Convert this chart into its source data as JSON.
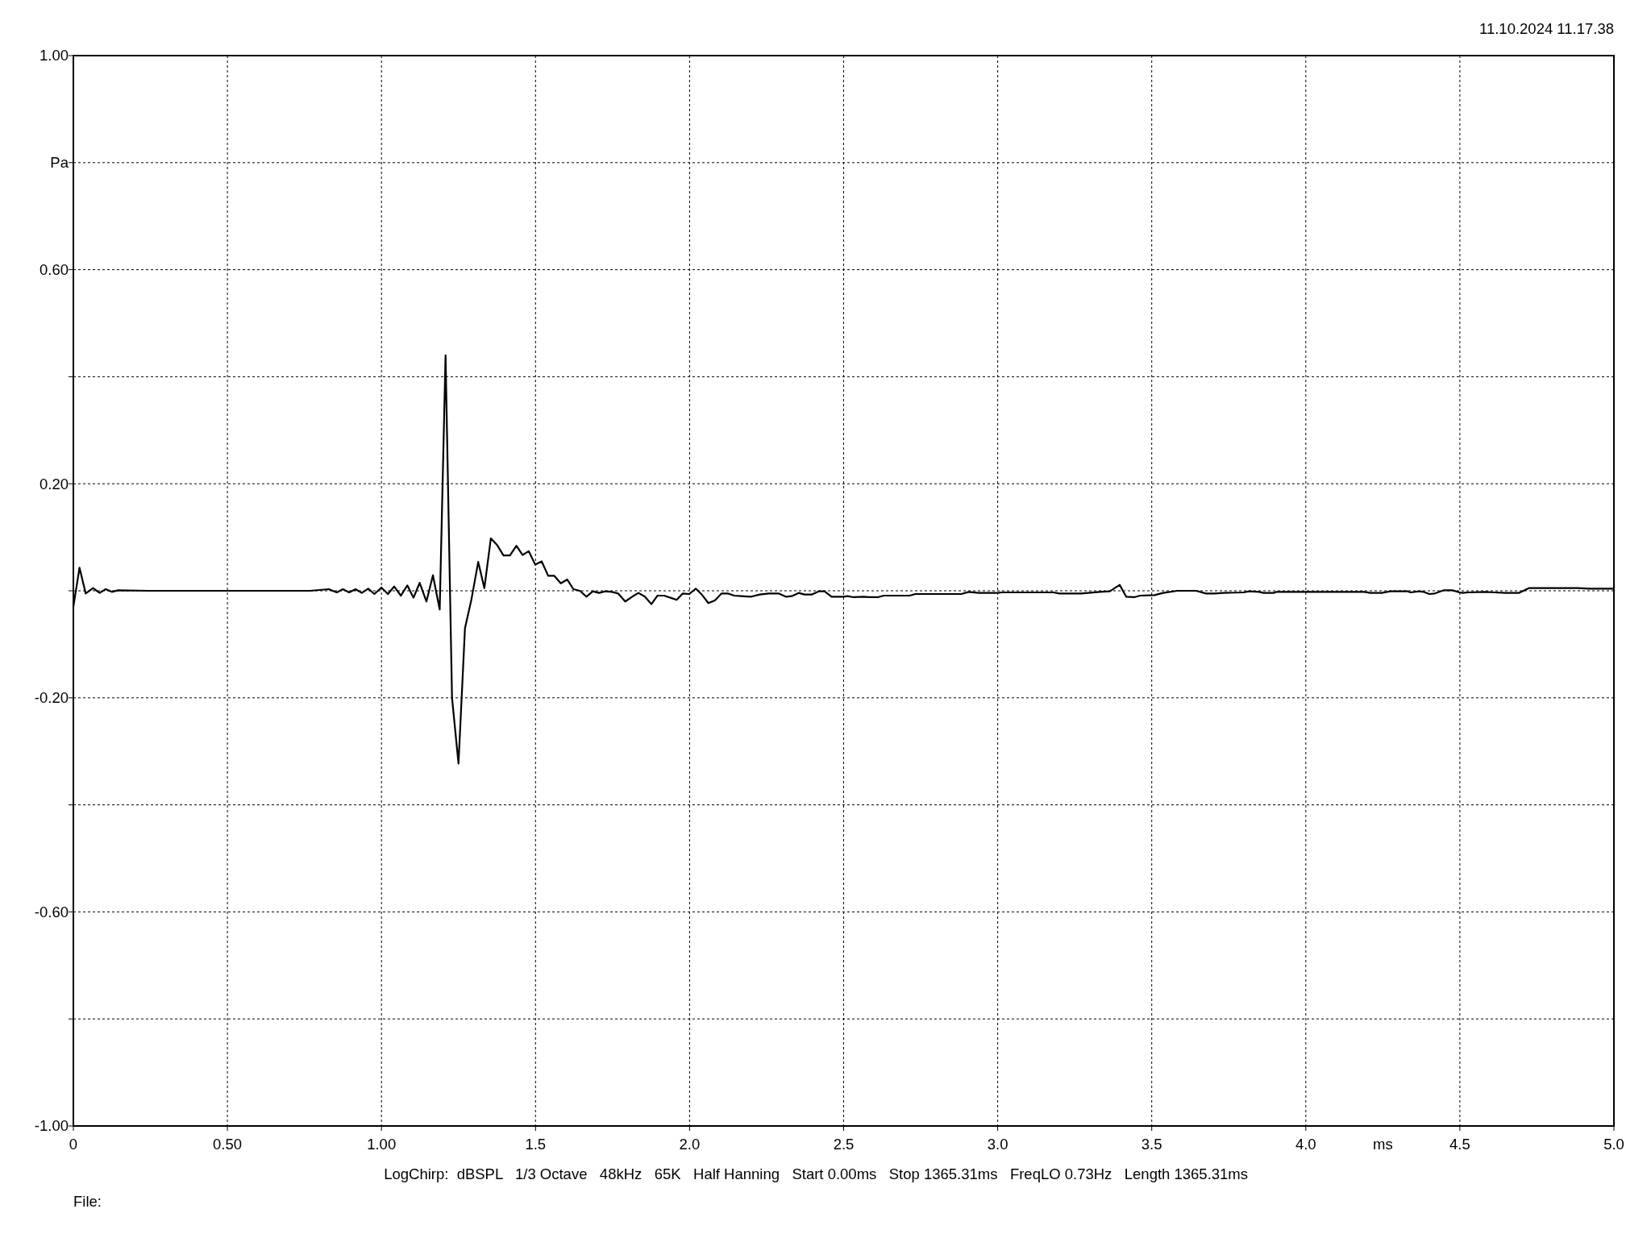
{
  "chart_data": {
    "type": "line",
    "ylabel": "Pa",
    "xlabel": "ms",
    "annotations": [
      "11.10.2024 11.17.38",
      "LogChirp:  dBSPL   1/3 Octave   48kHz   65K   Half Hanning   Start 0.00ms   Stop 1365.31ms   FreqLO 0.73Hz   Length 1365.31ms",
      "File:"
    ],
    "xlim": [
      0,
      5
    ],
    "xticks": [
      0,
      {
        "value": 0.5,
        "label": "0.50"
      },
      {
        "value": 1,
        "label": "1.00"
      },
      1.5,
      {
        "value": 2,
        "label": "2.0"
      },
      2.5,
      {
        "value": 3,
        "label": "3.0"
      },
      3.5,
      {
        "value": 4,
        "label": "4.0"
      },
      4.5,
      {
        "value": 5,
        "label": "5.0"
      }
    ],
    "ylim": [
      -1,
      1
    ],
    "yticks": [
      {
        "value": -1,
        "label": "-1.00"
      },
      {
        "value": -0.8,
        "label": null
      },
      {
        "value": -0.6,
        "label": "-0.60"
      },
      {
        "value": -0.4,
        "label": null
      },
      {
        "value": -0.2,
        "label": "-0.20"
      },
      {
        "value": 0,
        "label": null
      },
      {
        "value": 0.2,
        "label": "0.20"
      },
      {
        "value": 0.4,
        "label": null
      },
      {
        "value": 0.6,
        "label": "0.60"
      },
      {
        "value": 0.8,
        "label": null
      },
      {
        "value": 1,
        "label": "1.00"
      }
    ],
    "grid": true,
    "line_style": "solid",
    "series": [
      {
        "color": "#000000",
        "x": [
          0,
          0.02,
          0.04,
          0.064,
          0.085,
          0.105,
          0.125,
          0.145,
          0.245,
          0.506,
          0.768,
          0.829,
          0.855,
          0.875,
          0.895,
          0.916,
          0.936,
          0.957,
          0.977,
          1.0,
          1.021,
          1.041,
          1.063,
          1.084,
          1.104,
          1.124,
          1.146,
          1.167,
          1.189,
          1.208,
          1.229,
          1.25,
          1.271,
          1.292,
          1.314,
          1.334,
          1.355,
          1.376,
          1.396,
          1.417,
          1.438,
          1.458,
          1.478,
          1.499,
          1.52,
          1.541,
          1.561,
          1.582,
          1.603,
          1.623,
          1.644,
          1.665,
          1.686,
          1.706,
          1.727,
          1.748,
          1.768,
          1.791,
          1.814,
          1.834,
          1.855,
          1.876,
          1.896,
          1.917,
          1.938,
          1.958,
          1.978,
          1.999,
          2.02,
          2.041,
          2.061,
          2.082,
          2.104,
          2.124,
          2.145,
          2.168,
          2.2,
          2.228,
          2.256,
          2.289,
          2.312,
          2.331,
          2.354,
          2.373,
          2.396,
          2.419,
          2.438,
          2.461,
          2.499,
          2.513,
          2.532,
          2.564,
          2.583,
          2.611,
          2.63,
          2.714,
          2.733,
          2.882,
          2.906,
          2.938,
          2.999,
          3.013,
          3.181,
          3.2,
          3.27,
          3.331,
          3.364,
          3.396,
          3.417,
          3.443,
          3.462,
          3.509,
          3.537,
          3.583,
          3.644,
          3.676,
          3.704,
          3.732,
          3.798,
          3.816,
          3.849,
          3.863,
          3.896,
          3.905,
          4.19,
          4.209,
          4.246,
          4.274,
          4.33,
          4.34,
          4.368,
          4.382,
          4.401,
          4.419,
          4.448,
          4.476,
          4.499,
          4.509,
          4.527,
          4.583,
          4.611,
          4.649,
          4.691,
          4.724,
          4.747,
          4.883,
          4.92,
          5.0
        ],
        "values": [
          -0.03,
          0.043,
          -0.005,
          0.005,
          -0.004,
          0.003,
          -0.002,
          0.001,
          0,
          0,
          0,
          0.003,
          -0.003,
          0.003,
          -0.003,
          0.003,
          -0.004,
          0.004,
          -0.006,
          0.006,
          -0.006,
          0.008,
          -0.009,
          0.01,
          -0.013,
          0.015,
          -0.02,
          0.029,
          -0.035,
          0.44,
          -0.2,
          -0.323,
          -0.07,
          -0.016,
          0.054,
          0.005,
          0.098,
          0.085,
          0.066,
          0.066,
          0.084,
          0.067,
          0.074,
          0.049,
          0.055,
          0.028,
          0.028,
          0.014,
          0.021,
          0.003,
          0,
          -0.011,
          -0.001,
          -0.004,
          -0.001,
          -0.002,
          -0.005,
          -0.02,
          -0.011,
          -0.004,
          -0.011,
          -0.025,
          -0.009,
          -0.009,
          -0.013,
          -0.017,
          -0.005,
          -0.006,
          0.004,
          -0.008,
          -0.023,
          -0.018,
          -0.005,
          -0.005,
          -0.009,
          -0.01,
          -0.011,
          -0.007,
          -0.005,
          -0.005,
          -0.011,
          -0.01,
          -0.004,
          -0.007,
          -0.007,
          -0.001,
          -0.001,
          -0.011,
          -0.011,
          -0.01,
          -0.012,
          -0.011,
          -0.012,
          -0.012,
          -0.009,
          -0.009,
          -0.006,
          -0.006,
          -0.002,
          -0.004,
          -0.004,
          -0.003,
          -0.003,
          -0.005,
          -0.005,
          -0.002,
          -0.001,
          0.011,
          -0.011,
          -0.012,
          -0.009,
          -0.008,
          -0.004,
          0,
          0,
          -0.005,
          -0.005,
          -0.004,
          -0.003,
          -0.001,
          -0.002,
          -0.004,
          -0.004,
          -0.002,
          -0.002,
          -0.004,
          -0.004,
          -0.001,
          -0.001,
          -0.003,
          -0.001,
          -0.002,
          -0.006,
          -0.005,
          0.001,
          0.001,
          -0.003,
          -0.004,
          -0.003,
          -0.002,
          -0.003,
          -0.004,
          -0.004,
          0.005,
          0.005,
          0.005,
          0.004,
          0.004
        ]
      }
    ]
  }
}
